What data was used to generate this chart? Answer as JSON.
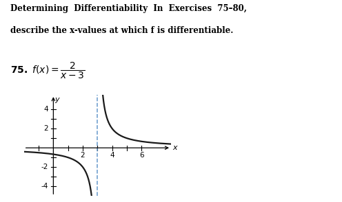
{
  "title_line1": "Determining  Differentiability  In  Exercises  75–80,",
  "title_line2": "describe the x-values at which f is differentiable.",
  "exercise_num": "75.",
  "xlim": [
    -2.0,
    8.0
  ],
  "ylim": [
    -5.0,
    5.5
  ],
  "xticks": [
    2,
    4,
    6
  ],
  "xticks_minor": [
    -1,
    1,
    3,
    5
  ],
  "yticks": [
    -4,
    -2,
    2,
    4
  ],
  "yticks_minor": [
    -3,
    -1,
    1,
    3
  ],
  "asymptote_x": 3.0,
  "curve_color": "#1a1a1a",
  "asymptote_color": "#6699cc",
  "bg_color": "#ffffff",
  "axis_label_x": "x",
  "axis_label_y": "y",
  "curve_lw": 1.6
}
